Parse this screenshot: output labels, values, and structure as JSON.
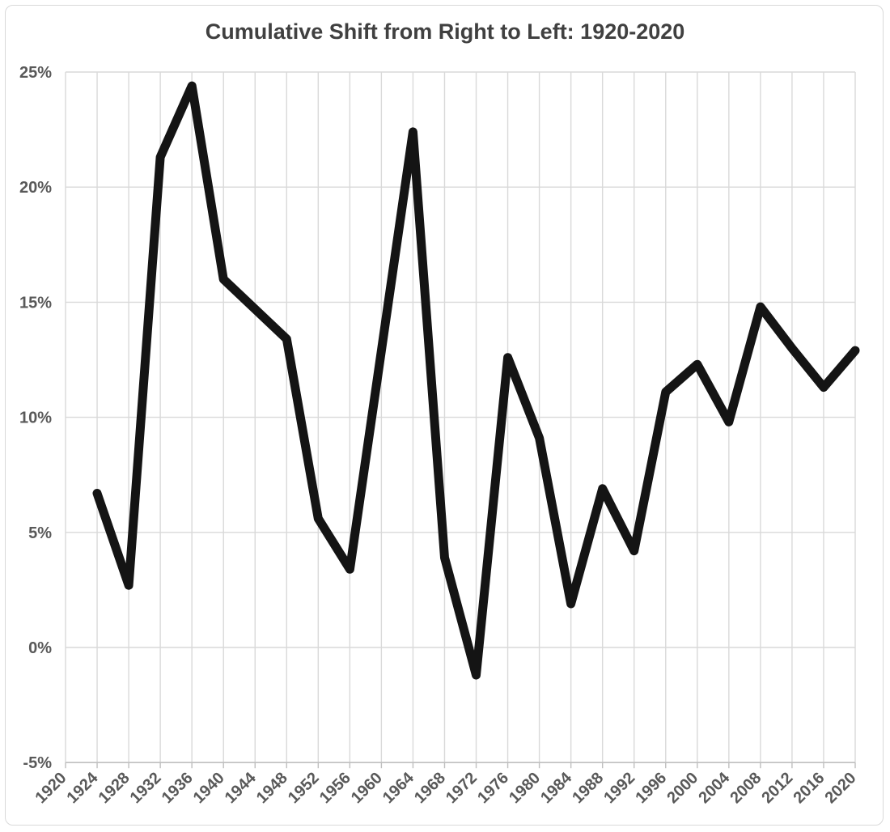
{
  "chart_data": {
    "type": "line",
    "title": "Cumulative Shift from Right to Left: 1920-2020",
    "series": [
      {
        "name": "Cumulative shift",
        "x": [
          1924,
          1928,
          1932,
          1936,
          1940,
          1944,
          1948,
          1952,
          1956,
          1960,
          1964,
          1968,
          1972,
          1976,
          1980,
          1984,
          1988,
          1992,
          1996,
          2000,
          2004,
          2008,
          2012,
          2016,
          2020
        ],
        "values": [
          6.7,
          2.7,
          21.3,
          24.4,
          16.0,
          14.7,
          13.4,
          5.6,
          3.4,
          12.9,
          22.4,
          3.9,
          -1.2,
          12.6,
          9.1,
          1.9,
          6.9,
          4.2,
          11.1,
          12.3,
          9.8,
          14.8,
          13.0,
          11.3,
          12.9
        ]
      }
    ],
    "xlabel": "",
    "ylabel": "",
    "x_tick_labels": [
      "1920",
      "1924",
      "1928",
      "1932",
      "1936",
      "1940",
      "1944",
      "1948",
      "1952",
      "1956",
      "1960",
      "1964",
      "1968",
      "1972",
      "1976",
      "1980",
      "1984",
      "1988",
      "1992",
      "1996",
      "2000",
      "2004",
      "2008",
      "2012",
      "2016",
      "2020"
    ],
    "y_tick_labels": [
      "25%",
      "20%",
      "15%",
      "10%",
      "5%",
      "0%",
      "-5%"
    ],
    "xlim": [
      1920,
      2020
    ],
    "ylim": [
      -5,
      25
    ],
    "grid": "both",
    "legend": "none",
    "colors": {
      "line": "#141414",
      "gridline": "#d9d9d9",
      "axis": "#bfbfbf",
      "tick_label": "#595959",
      "title": "#404040",
      "background": "#ffffff"
    }
  }
}
